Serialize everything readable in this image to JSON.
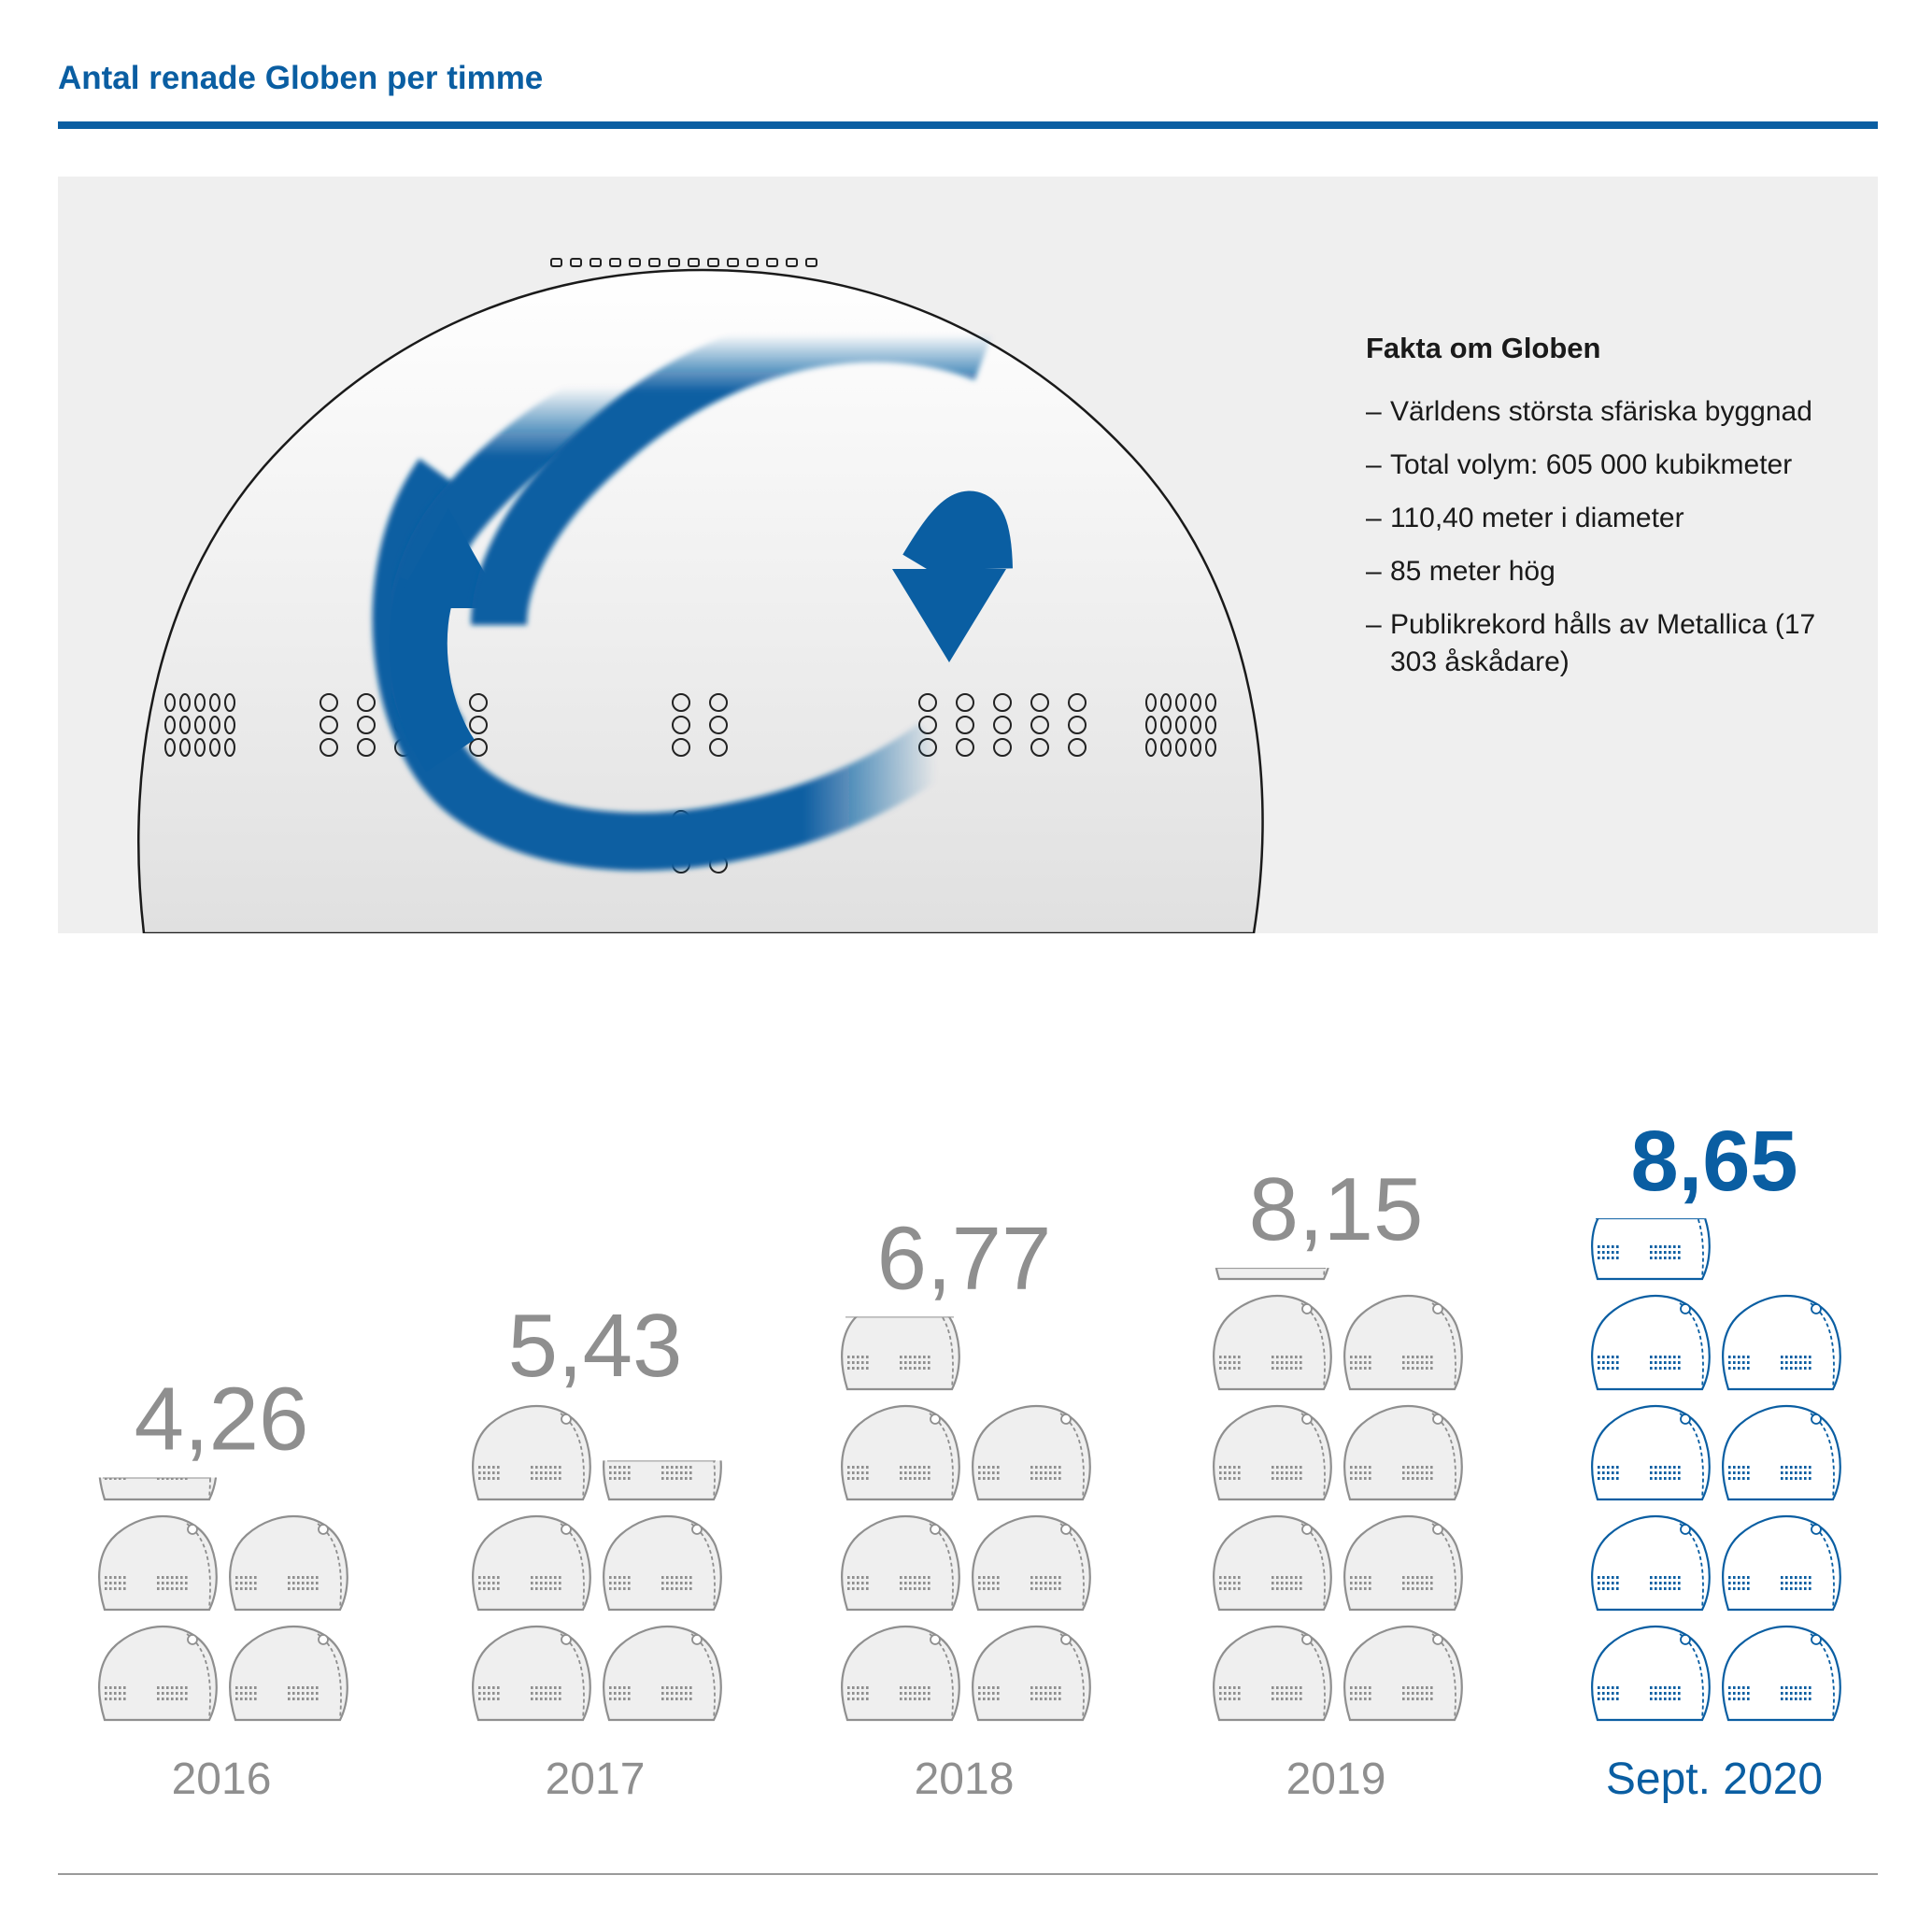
{
  "title": "Antal renade Globen per timme",
  "facts": {
    "title": "Fakta om Globen",
    "items": [
      "Världens största sfäriska byggnad",
      "Total volym: 605 000 kubikmeter",
      "110,40 meter i diameter",
      "85 meter hög",
      "Publikrekord hålls av Metallica (17 303 åskådare)"
    ]
  },
  "colors": {
    "accent": "#0a5ea2",
    "muted": "#8f8f8f",
    "panel": "#efefef"
  },
  "chart_data": {
    "type": "bar",
    "title": "Antal renade Globen per timme",
    "categories": [
      "2016",
      "2017",
      "2018",
      "2019",
      "Sept. 2020"
    ],
    "values": [
      4.26,
      5.43,
      6.77,
      8.15,
      8.65
    ],
    "value_labels": [
      "4,26",
      "5,43",
      "6,77",
      "8,15",
      "8,65"
    ],
    "unit_icon": "globe-arena-icon",
    "highlight_category": "Sept. 2020",
    "highlight_color": "#0a5ea2",
    "base_color": "#8f8f8f"
  }
}
